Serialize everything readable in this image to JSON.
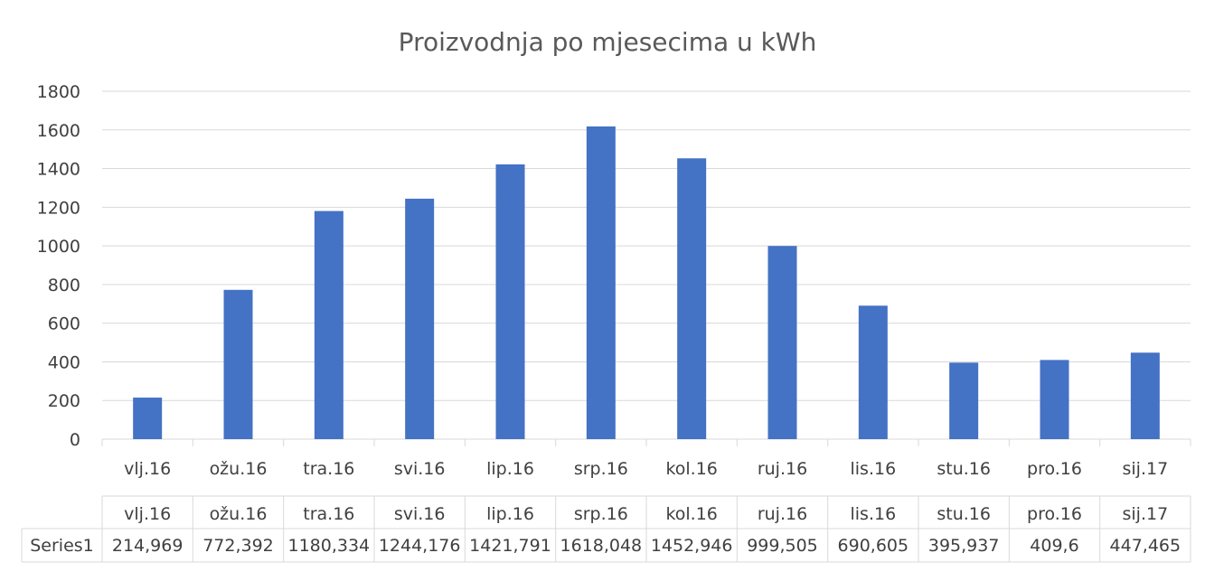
{
  "chart_data": {
    "type": "bar",
    "title": "Proizvodnja po mjesecima u kWh",
    "categories": [
      "vlj.16",
      "ožu.16",
      "tra.16",
      "svi.16",
      "lip.16",
      "srp.16",
      "kol.16",
      "ruj.16",
      "lis.16",
      "stu.16",
      "pro.16",
      "sij.17"
    ],
    "series": [
      {
        "name": "Series1",
        "values": [
          214.969,
          772.392,
          1180.334,
          1244.176,
          1421.791,
          1618.048,
          1452.946,
          999.505,
          690.605,
          395.937,
          409.6,
          447.465
        ],
        "labels": [
          "214,969",
          "772,392",
          "1180,334",
          "1244,176",
          "1421,791",
          "1618,048",
          "1452,946",
          "999,505",
          "690,605",
          "395,937",
          "409,6",
          "447,465"
        ]
      }
    ],
    "ylim": [
      0,
      1800
    ],
    "yticks": [
      "0",
      "200",
      "400",
      "600",
      "800",
      "1000",
      "1200",
      "1400",
      "1600",
      "1800"
    ],
    "grid": true,
    "data_table": true,
    "colors": {
      "bar": "#4472C4",
      "grid": "#D9D9D9",
      "text": "#404040",
      "title": "#595959"
    }
  }
}
